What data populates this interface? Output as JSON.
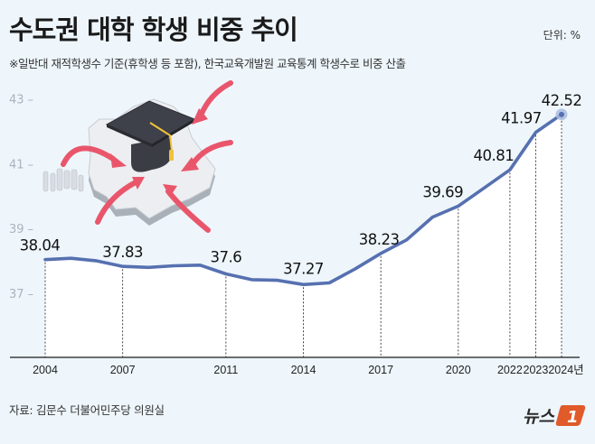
{
  "header": {
    "title": "수도권 대학 학생 비중 추이",
    "unit": "단위: %",
    "subtitle": "※일반대 재적학생수 기준(휴학생 등 포함), 한국교육개발원 교육통계 학생수로 비중 산출"
  },
  "footer": {
    "source": "자료: 김문수 더불어민주당 의원실",
    "logo_text": "뉴스",
    "logo_mark": "1"
  },
  "colors": {
    "background": "#eef6fc",
    "line": "#5670b0",
    "area": "#ffffff",
    "marker": "#5670b0",
    "marker_halo": "#a9bde0",
    "logo_accent": "#e05a2a",
    "arrow": "#e9566b"
  },
  "chart_data": {
    "type": "line",
    "title": "수도권 대학 학생 비중 추이",
    "subtitle": "※일반대 재적학생수 기준(휴학생 등 포함), 한국교육개발원 교육통계 학생수로 비중 산출",
    "xlabel": "",
    "ylabel": "단위: %",
    "ylim": [
      36.5,
      43.3
    ],
    "yticks": [
      37,
      39,
      41,
      43
    ],
    "grid": false,
    "legend": null,
    "x_unit_suffix": "년",
    "labeled_points": [
      {
        "year": 2004,
        "value": 38.04
      },
      {
        "year": 2007,
        "value": 37.83
      },
      {
        "year": 2011,
        "value": 37.6
      },
      {
        "year": 2014,
        "value": 37.27
      },
      {
        "year": 2017,
        "value": 38.23
      },
      {
        "year": 2020,
        "value": 39.69
      },
      {
        "year": 2022,
        "value": 40.81
      },
      {
        "year": 2023,
        "value": 41.97
      },
      {
        "year": 2024,
        "value": 42.52
      }
    ],
    "x": [
      2004,
      2005,
      2006,
      2007,
      2008,
      2009,
      2010,
      2011,
      2012,
      2013,
      2014,
      2015,
      2016,
      2017,
      2018,
      2019,
      2020,
      2021,
      2022,
      2023,
      2024
    ],
    "values": [
      38.04,
      38.08,
      38.0,
      37.83,
      37.8,
      37.85,
      37.87,
      37.6,
      37.42,
      37.4,
      37.27,
      37.32,
      37.75,
      38.23,
      38.65,
      39.35,
      39.69,
      40.25,
      40.81,
      41.97,
      42.52
    ],
    "x_tick_labels": [
      "2004",
      "2007",
      "2011",
      "2014",
      "2017",
      "2020",
      "2022",
      "2023",
      "2024년"
    ]
  }
}
